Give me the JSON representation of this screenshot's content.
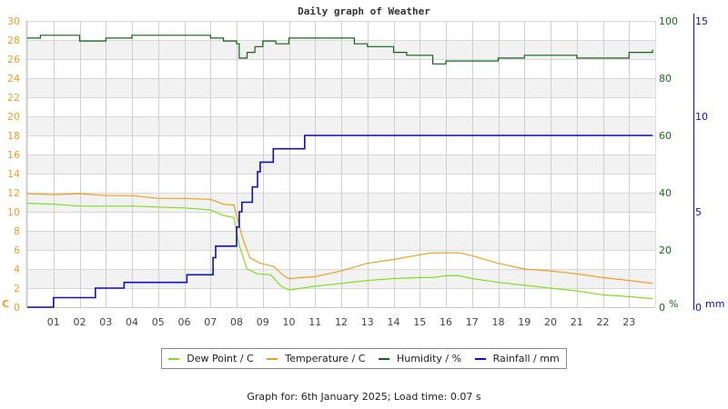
{
  "chart_data": {
    "type": "line",
    "title": "Daily graph of Weather",
    "xlabel": "",
    "x_ticks": [
      "01",
      "02",
      "03",
      "04",
      "05",
      "06",
      "07",
      "08",
      "09",
      "10",
      "11",
      "12",
      "13",
      "14",
      "15",
      "16",
      "17",
      "18",
      "19",
      "20",
      "21",
      "22",
      "23"
    ],
    "axes": {
      "left": {
        "label": "C",
        "range": [
          0,
          30
        ],
        "ticks": [
          0,
          2,
          4,
          6,
          8,
          10,
          12,
          14,
          16,
          18,
          20,
          22,
          24,
          26,
          28,
          30
        ],
        "color": "#f0a020"
      },
      "right1": {
        "label": "%",
        "range": [
          0,
          100
        ],
        "ticks": [
          0,
          20,
          40,
          60,
          80,
          100
        ],
        "color": "#1a6a1a"
      },
      "right2": {
        "label": "mm",
        "range": [
          0,
          15
        ],
        "ticks": [
          0,
          5,
          10,
          15
        ],
        "color": "#1010c0"
      }
    },
    "grid": true,
    "legend_position": "bottom",
    "series": [
      {
        "name": "Dew Point / C",
        "color": "#80e020",
        "axis": "left",
        "hours": [
          0,
          1,
          2,
          3,
          4,
          5,
          6,
          7,
          7.5,
          7.9,
          8.1,
          8.4,
          8.8,
          9.3,
          9.7,
          10,
          11,
          12,
          13,
          14,
          15,
          15.5,
          16,
          16.5,
          17,
          18,
          19,
          20,
          21,
          22,
          23,
          23.9
        ],
        "values": [
          10.9,
          10.8,
          10.6,
          10.6,
          10.6,
          10.5,
          10.4,
          10.2,
          9.6,
          9.4,
          6.5,
          4.0,
          3.5,
          3.4,
          2.2,
          1.8,
          2.2,
          2.5,
          2.8,
          3.0,
          3.1,
          3.1,
          3.3,
          3.3,
          3.0,
          2.6,
          2.3,
          2.0,
          1.7,
          1.3,
          1.1,
          0.9
        ]
      },
      {
        "name": "Temperature / C",
        "color": "#f0a020",
        "axis": "left",
        "hours": [
          0,
          1,
          2,
          3,
          4,
          5,
          6,
          7,
          7.5,
          7.9,
          8.2,
          8.5,
          8.9,
          9.4,
          9.8,
          10,
          11,
          12,
          13,
          14,
          15,
          15.5,
          16,
          16.5,
          17,
          18,
          19,
          20,
          21,
          22,
          23,
          23.9
        ],
        "values": [
          11.9,
          11.8,
          11.9,
          11.7,
          11.7,
          11.4,
          11.4,
          11.3,
          10.8,
          10.7,
          7.5,
          5.2,
          4.6,
          4.3,
          3.3,
          3.0,
          3.2,
          3.8,
          4.6,
          5.0,
          5.5,
          5.7,
          5.7,
          5.7,
          5.4,
          4.6,
          4.0,
          3.8,
          3.5,
          3.1,
          2.8,
          2.5
        ]
      },
      {
        "name": "Humidity / %",
        "color": "#116611",
        "axis": "right1",
        "hours": [
          0,
          0.5,
          1,
          2,
          2.5,
          3,
          4,
          4.5,
          5,
          6,
          7,
          7.5,
          8,
          8.1,
          8.4,
          8.7,
          9,
          9.5,
          10,
          11,
          12,
          12.5,
          13,
          14,
          14.5,
          15,
          15.5,
          16,
          17,
          17.5,
          18,
          19,
          20,
          21,
          22,
          23,
          23.9
        ],
        "values": [
          94,
          95,
          95,
          93,
          93,
          94,
          95,
          95,
          95,
          95,
          94,
          93,
          92,
          87,
          89,
          91,
          93,
          92,
          94,
          94,
          94,
          92,
          91,
          89,
          88,
          88,
          85,
          86,
          86,
          86,
          87,
          88,
          88,
          87,
          87,
          89,
          90
        ]
      },
      {
        "name": "Rainfall / mm",
        "color": "#1010c0",
        "axis": "right2",
        "hours": [
          0,
          0.9,
          1,
          2.5,
          2.6,
          3.6,
          3.7,
          6,
          6.1,
          7,
          7.1,
          7.2,
          7.9,
          8.0,
          8.1,
          8.2,
          8.4,
          8.6,
          8.8,
          8.9,
          9.3,
          9.4,
          10.5,
          10.6,
          23.9
        ],
        "values": [
          0,
          0,
          0.5,
          0.5,
          1.0,
          1.0,
          1.3,
          1.3,
          1.7,
          1.7,
          2.6,
          3.2,
          3.2,
          4.2,
          5.0,
          5.5,
          5.5,
          6.3,
          7.1,
          7.6,
          7.6,
          8.3,
          8.3,
          9.0,
          9.0
        ]
      }
    ]
  },
  "header": {
    "title": "Daily graph of Weather"
  },
  "legend": {
    "items": [
      {
        "label": "Dew Point / C",
        "color": "#80e020"
      },
      {
        "label": "Temperature / C",
        "color": "#f0a020"
      },
      {
        "label": "Humidity / %",
        "color": "#116611"
      },
      {
        "label": "Rainfall / mm",
        "color": "#1010c0"
      }
    ]
  },
  "footer": {
    "text": "Graph for: 6th January 2025; Load time: 0.07 s"
  }
}
